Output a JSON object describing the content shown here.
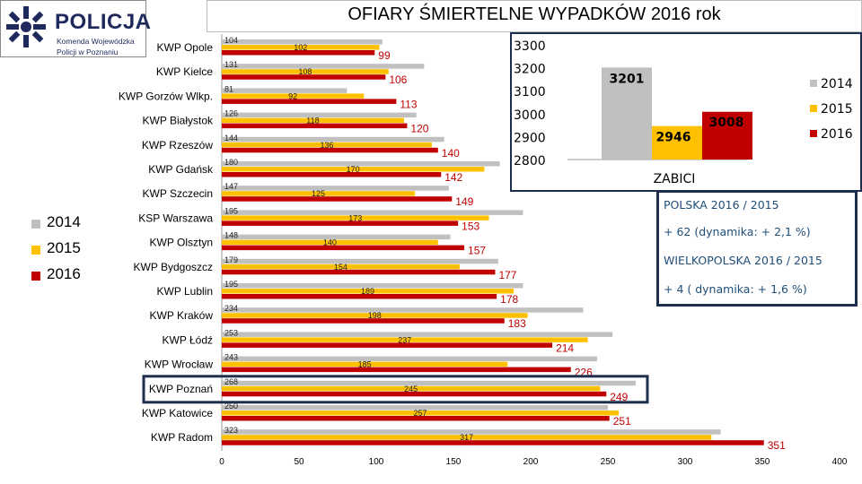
{
  "logo": {
    "name": "POLICJA",
    "subtitle_line1": "Komenda Wojewódzka",
    "subtitle_line2": "Policji w Poznaniu"
  },
  "colors": {
    "y2014": "#c0c0c0",
    "y2015": "#ffc000",
    "y2016": "#c00000",
    "highlight": "#1e2f4e",
    "info_text": "#1f4e79"
  },
  "chart_data": [
    {
      "type": "bar",
      "orientation": "horizontal",
      "title": "OFIARY ŚMIERTELNE WYPADKÓW  2016 rok",
      "categories": [
        "KWP Opole",
        "KWP Kielce",
        "KWP Gorzów Wlkp.",
        "KWP Białystok",
        "KWP Rzeszów",
        "KWP Gdańsk",
        "KWP Szczecin",
        "KSP Warszawa",
        "KWP Olsztyn",
        "KWP Bydgoszcz",
        "KWP Lublin",
        "KWP Kraków",
        "KWP Łódź",
        "KWP Wrocław",
        "KWP Poznań",
        "KWP Katowice",
        "KWP Radom"
      ],
      "series": [
        {
          "name": "2014",
          "values": [
            104,
            131,
            81,
            126,
            144,
            180,
            147,
            195,
            148,
            179,
            195,
            234,
            253,
            243,
            268,
            250,
            323
          ]
        },
        {
          "name": "2015",
          "values": [
            102,
            108,
            92,
            118,
            136,
            170,
            125,
            173,
            140,
            154,
            189,
            198,
            237,
            185,
            245,
            257,
            317
          ]
        },
        {
          "name": "2016",
          "values": [
            99,
            106,
            113,
            120,
            140,
            142,
            149,
            153,
            157,
            177,
            178,
            183,
            214,
            226,
            249,
            251,
            351
          ]
        }
      ],
      "xlim": [
        0,
        400
      ],
      "ticks": [
        "0",
        "50",
        "100",
        "150",
        "200",
        "250",
        "300",
        "350",
        "400"
      ],
      "highlighted_category": "KWP Poznań",
      "legend": {
        "position": "left",
        "labels": [
          "2014",
          "2015",
          "2016"
        ]
      }
    },
    {
      "type": "bar",
      "categories": [
        "2014",
        "2015",
        "2016"
      ],
      "values": [
        3201,
        2946,
        3008
      ],
      "ylim": [
        2800,
        3300
      ],
      "ticks": [
        "3300",
        "3200",
        "3100",
        "3000",
        "2900",
        "2800"
      ],
      "xlabel": "ZABICI",
      "legend": {
        "position": "right",
        "labels": [
          "2014",
          "2015",
          "2016"
        ]
      }
    }
  ],
  "info": {
    "line1": "POLSKA 2016 / 2015",
    "line2": "+ 62 (dynamika: + 2,1 %)",
    "line3": "WIELKOPOLSKA 2016 / 2015",
    "line4": "+ 4 ( dynamika: + 1,6 %)"
  }
}
